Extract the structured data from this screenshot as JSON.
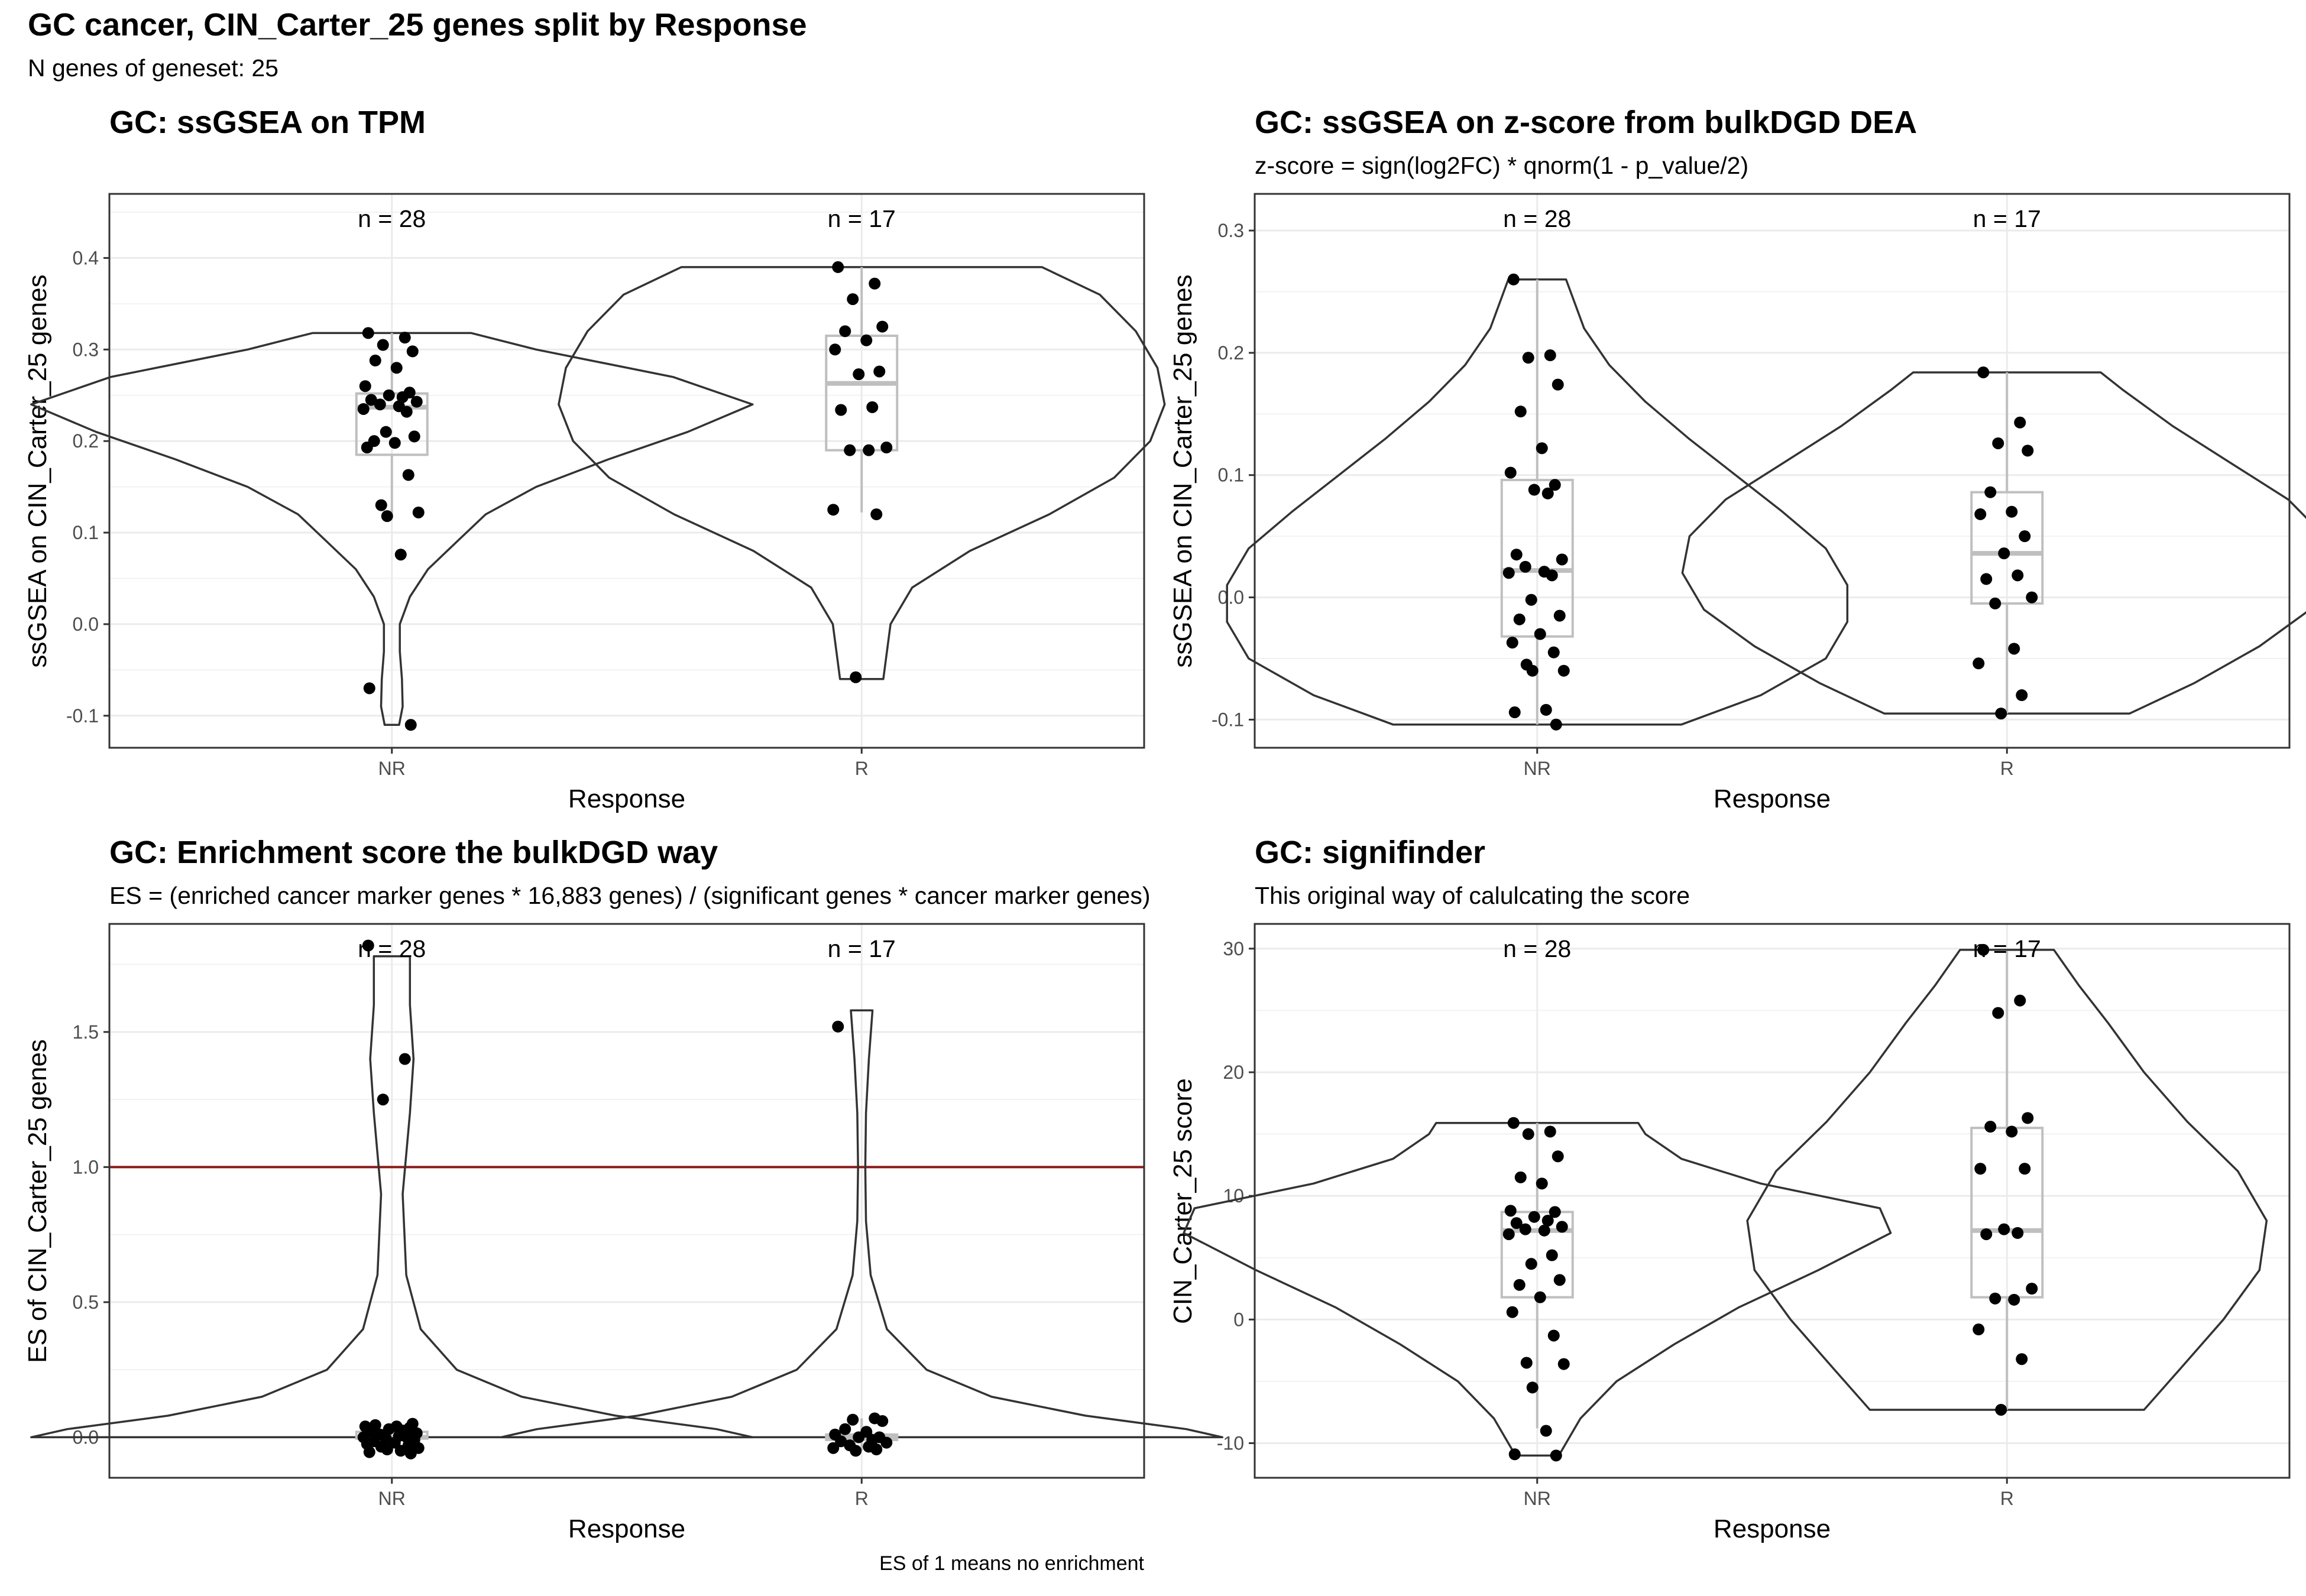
{
  "figure": {
    "title": "GC cancer, CIN_Carter_25 genes split by Response",
    "subtitle": "N genes of geneset: 25"
  },
  "chart_data": [
    {
      "type": "violin",
      "title": "GC: ssGSEA on TPM",
      "subtitle": "",
      "xlabel": "Response",
      "ylabel": "ssGSEA on CIN_Carter_25 genes",
      "categories": [
        "NR",
        "R"
      ],
      "ylim": [
        -0.135,
        0.47
      ],
      "yticks": [
        -0.1,
        0.0,
        0.1,
        0.2,
        0.3,
        0.4
      ],
      "ytick_labels": [
        "-0.1",
        "0.0",
        "0.1",
        "0.2",
        "0.3",
        "0.4"
      ],
      "n_labels": [
        "n = 28",
        "n = 17"
      ],
      "groups": [
        {
          "name": "NR",
          "box": {
            "q1": 0.185,
            "median": 0.237,
            "q3": 0.252,
            "whisker_low": 0.12,
            "whisker_high": 0.318
          },
          "points": [
            0.318,
            0.313,
            0.305,
            0.298,
            0.288,
            0.28,
            0.26,
            0.253,
            0.25,
            0.248,
            0.245,
            0.243,
            0.24,
            0.238,
            0.235,
            0.232,
            0.21,
            0.205,
            0.2,
            0.198,
            0.193,
            0.163,
            0.13,
            0.122,
            0.118,
            0.076,
            -0.07,
            -0.11
          ],
          "violin": [
            [
              -0.11,
              0.02
            ],
            [
              -0.09,
              0.03
            ],
            [
              -0.06,
              0.028
            ],
            [
              -0.03,
              0.022
            ],
            [
              0.0,
              0.022
            ],
            [
              0.03,
              0.05
            ],
            [
              0.06,
              0.1
            ],
            [
              0.09,
              0.18
            ],
            [
              0.12,
              0.26
            ],
            [
              0.15,
              0.4
            ],
            [
              0.18,
              0.6
            ],
            [
              0.21,
              0.82
            ],
            [
              0.24,
              1.0
            ],
            [
              0.27,
              0.78
            ],
            [
              0.3,
              0.4
            ],
            [
              0.318,
              0.22
            ]
          ]
        },
        {
          "name": "R",
          "box": {
            "q1": 0.19,
            "median": 0.263,
            "q3": 0.315,
            "whisker_low": 0.122,
            "whisker_high": 0.39
          },
          "points": [
            0.39,
            0.372,
            0.355,
            0.325,
            0.32,
            0.31,
            0.3,
            0.276,
            0.273,
            0.237,
            0.234,
            0.193,
            0.19,
            0.19,
            0.125,
            0.12,
            -0.058
          ],
          "violin": [
            [
              -0.06,
              0.06
            ],
            [
              -0.03,
              0.07
            ],
            [
              0.0,
              0.08
            ],
            [
              0.04,
              0.14
            ],
            [
              0.08,
              0.3
            ],
            [
              0.12,
              0.52
            ],
            [
              0.16,
              0.7
            ],
            [
              0.2,
              0.8
            ],
            [
              0.24,
              0.84
            ],
            [
              0.28,
              0.82
            ],
            [
              0.32,
              0.76
            ],
            [
              0.36,
              0.66
            ],
            [
              0.39,
              0.5
            ]
          ]
        }
      ]
    },
    {
      "type": "violin",
      "title": "GC: ssGSEA on z-score from bulkDGD DEA",
      "subtitle": "z-score = sign(log2FC) * qnorm(1 - p_value/2)",
      "xlabel": "Response",
      "ylabel": "ssGSEA on CIN_Carter_25 genes",
      "categories": [
        "NR",
        "R"
      ],
      "ylim": [
        -0.123,
        0.33
      ],
      "yticks": [
        -0.1,
        0.0,
        0.1,
        0.2,
        0.3
      ],
      "ytick_labels": [
        "-0.1",
        "0.0",
        "0.1",
        "0.2",
        "0.3"
      ],
      "n_labels": [
        "n = 28",
        "n = 17"
      ],
      "groups": [
        {
          "name": "NR",
          "box": {
            "q1": -0.032,
            "median": 0.022,
            "q3": 0.096,
            "whisker_low": -0.104,
            "whisker_high": 0.26
          },
          "points": [
            0.26,
            0.198,
            0.196,
            0.174,
            0.152,
            0.122,
            0.102,
            0.092,
            0.088,
            0.085,
            0.035,
            0.031,
            0.025,
            0.021,
            0.02,
            0.018,
            -0.002,
            -0.015,
            -0.018,
            -0.03,
            -0.037,
            -0.045,
            -0.055,
            -0.06,
            -0.06,
            -0.092,
            -0.094,
            -0.104
          ],
          "violin": [
            [
              -0.104,
              0.4
            ],
            [
              -0.08,
              0.62
            ],
            [
              -0.05,
              0.8
            ],
            [
              -0.02,
              0.86
            ],
            [
              0.01,
              0.86
            ],
            [
              0.04,
              0.8
            ],
            [
              0.07,
              0.68
            ],
            [
              0.1,
              0.55
            ],
            [
              0.13,
              0.42
            ],
            [
              0.16,
              0.3
            ],
            [
              0.19,
              0.2
            ],
            [
              0.22,
              0.13
            ],
            [
              0.26,
              0.08
            ]
          ]
        },
        {
          "name": "R",
          "box": {
            "q1": -0.005,
            "median": 0.036,
            "q3": 0.086,
            "whisker_low": -0.095,
            "whisker_high": 0.184
          },
          "points": [
            0.184,
            0.143,
            0.126,
            0.12,
            0.086,
            0.07,
            0.068,
            0.05,
            0.036,
            0.018,
            0.015,
            0.0,
            -0.005,
            -0.042,
            -0.054,
            -0.08,
            -0.095
          ],
          "violin": [
            [
              -0.095,
              0.34
            ],
            [
              -0.07,
              0.52
            ],
            [
              -0.04,
              0.7
            ],
            [
              -0.01,
              0.84
            ],
            [
              0.02,
              0.9
            ],
            [
              0.05,
              0.88
            ],
            [
              0.08,
              0.78
            ],
            [
              0.11,
              0.62
            ],
            [
              0.14,
              0.46
            ],
            [
              0.17,
              0.32
            ],
            [
              0.184,
              0.26
            ]
          ]
        }
      ]
    },
    {
      "type": "violin",
      "title": "GC: Enrichment score the bulkDGD way",
      "subtitle": "ES = (enriched cancer marker genes * 16,883 genes) / (significant genes * cancer marker genes)",
      "caption": "ES of 1 means no enrichment",
      "xlabel": "Response",
      "ylabel": "ES of CIN_Carter_25 genes",
      "categories": [
        "NR",
        "R"
      ],
      "ylim": [
        -0.15,
        1.9
      ],
      "yticks": [
        0.0,
        0.5,
        1.0,
        1.5
      ],
      "ytick_labels": [
        "0.0",
        "0.5",
        "1.0",
        "1.5"
      ],
      "hline": 1.0,
      "n_labels": [
        "n = 28",
        "n = 17"
      ],
      "groups": [
        {
          "name": "NR",
          "box": {
            "q1": -0.005,
            "median": 0.0,
            "q3": 0.02,
            "whisker_low": -0.06,
            "whisker_high": 0.05
          },
          "points": [
            1.82,
            1.4,
            1.25,
            0.05,
            0.045,
            0.04,
            0.04,
            0.035,
            0.03,
            0.025,
            0.02,
            0.015,
            0.01,
            0.005,
            0.0,
            0.0,
            -0.005,
            -0.01,
            -0.015,
            -0.02,
            -0.025,
            -0.03,
            -0.035,
            -0.04,
            -0.045,
            -0.05,
            -0.055,
            -0.06
          ],
          "violin": [
            [
              0.0,
              1.0
            ],
            [
              0.03,
              0.9
            ],
            [
              0.08,
              0.62
            ],
            [
              0.15,
              0.36
            ],
            [
              0.25,
              0.18
            ],
            [
              0.4,
              0.08
            ],
            [
              0.6,
              0.04
            ],
            [
              0.9,
              0.03
            ],
            [
              1.2,
              0.05
            ],
            [
              1.4,
              0.06
            ],
            [
              1.6,
              0.05
            ],
            [
              1.78,
              0.05
            ]
          ]
        },
        {
          "name": "R",
          "box": {
            "q1": -0.01,
            "median": 0.0,
            "q3": 0.01,
            "whisker_low": -0.05,
            "whisker_high": 0.07
          },
          "points": [
            1.52,
            0.07,
            0.065,
            0.06,
            0.03,
            0.02,
            0.01,
            0.0,
            0.0,
            -0.01,
            -0.015,
            -0.02,
            -0.03,
            -0.035,
            -0.04,
            -0.045,
            -0.05
          ],
          "violin": [
            [
              0.0,
              1.0
            ],
            [
              0.03,
              0.9
            ],
            [
              0.08,
              0.62
            ],
            [
              0.15,
              0.36
            ],
            [
              0.25,
              0.18
            ],
            [
              0.4,
              0.07
            ],
            [
              0.6,
              0.025
            ],
            [
              0.8,
              0.012
            ],
            [
              1.0,
              0.01
            ],
            [
              1.2,
              0.012
            ],
            [
              1.4,
              0.02
            ],
            [
              1.58,
              0.03
            ]
          ]
        }
      ]
    },
    {
      "type": "violin",
      "title": "GC: signifinder",
      "subtitle": "This original way of calulcating the score",
      "xlabel": "Response",
      "ylabel": "CIN_Carter_25 score",
      "categories": [
        "NR",
        "R"
      ],
      "ylim": [
        -12.8,
        32
      ],
      "yticks": [
        -10,
        0,
        10,
        20,
        30
      ],
      "ytick_labels": [
        "-10",
        "0",
        "10",
        "20",
        "30"
      ],
      "n_labels": [
        "n = 28",
        "n = 17"
      ],
      "groups": [
        {
          "name": "NR",
          "box": {
            "q1": 1.8,
            "median": 7.2,
            "q3": 8.7,
            "whisker_low": -8.8,
            "whisker_high": 15.9
          },
          "points": [
            15.9,
            15.2,
            15.0,
            13.2,
            11.5,
            11.0,
            8.8,
            8.7,
            8.3,
            8.0,
            7.8,
            7.5,
            7.3,
            7.2,
            6.9,
            5.2,
            4.5,
            3.2,
            2.8,
            1.8,
            0.6,
            -1.3,
            -3.5,
            -3.6,
            -5.5,
            -9.0,
            -10.9,
            -11.0
          ],
          "violin": [
            [
              -11.0,
              0.06
            ],
            [
              -8.0,
              0.12
            ],
            [
              -5.0,
              0.22
            ],
            [
              -2.0,
              0.38
            ],
            [
              1.0,
              0.56
            ],
            [
              4.0,
              0.78
            ],
            [
              7.0,
              0.98
            ],
            [
              9.0,
              0.95
            ],
            [
              11.0,
              0.62
            ],
            [
              13.0,
              0.4
            ],
            [
              15.0,
              0.3
            ],
            [
              15.9,
              0.28
            ]
          ]
        },
        {
          "name": "R",
          "box": {
            "q1": 1.8,
            "median": 7.2,
            "q3": 15.5,
            "whisker_low": -7.3,
            "whisker_high": 29.8
          },
          "points": [
            29.9,
            25.8,
            24.8,
            16.3,
            15.6,
            15.2,
            12.2,
            12.2,
            7.3,
            7.0,
            6.9,
            2.5,
            1.7,
            1.6,
            -0.8,
            -3.2,
            -7.3
          ],
          "violin": [
            [
              -7.3,
              0.38
            ],
            [
              -4.0,
              0.48
            ],
            [
              0.0,
              0.6
            ],
            [
              4.0,
              0.7
            ],
            [
              8.0,
              0.72
            ],
            [
              12.0,
              0.64
            ],
            [
              16.0,
              0.5
            ],
            [
              20.0,
              0.38
            ],
            [
              24.0,
              0.28
            ],
            [
              27.0,
              0.2
            ],
            [
              29.9,
              0.13
            ]
          ]
        }
      ]
    }
  ]
}
